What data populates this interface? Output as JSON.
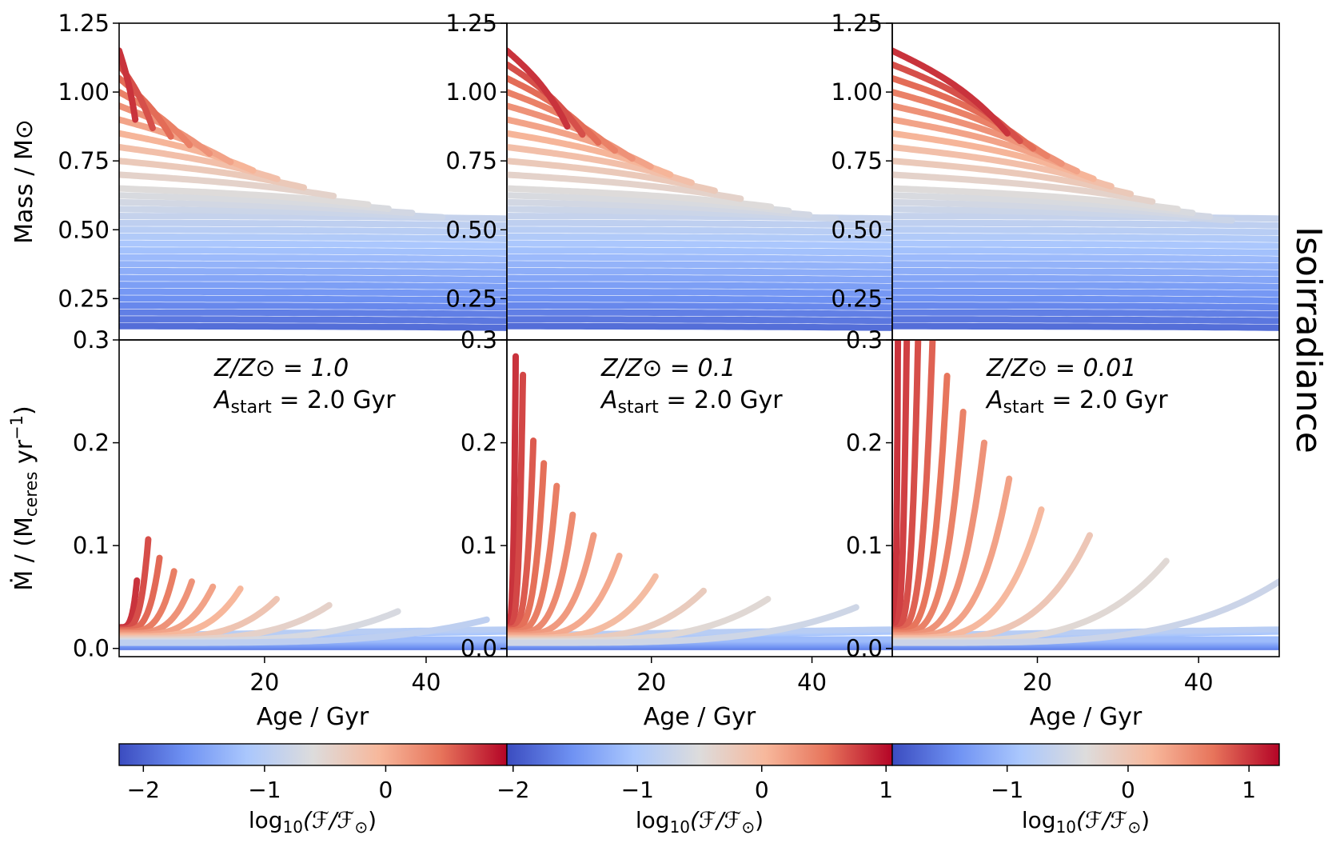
{
  "figure": {
    "side_label": "Isoirradiance",
    "x_label": "Age / Gyr",
    "mass_label": "Mass / M⊙",
    "mdot_label": "Ṁ / (M",
    "mdot_label_sub": "ceres",
    "mdot_label_tail": " yr",
    "mdot_label_sup": "−1",
    "mdot_label_close": ")",
    "cbar_label_main": "log",
    "cbar_label_sub": "10",
    "cbar_label_tail": "(ℱ/ℱ",
    "cbar_label_sun": "⊙",
    "cbar_label_close": ")"
  },
  "colormap": {
    "name": "coolwarm",
    "stops": [
      "#3b4cc0",
      "#6f92f3",
      "#aac7fd",
      "#dddcdc",
      "#f7b89c",
      "#e7745b",
      "#b40426"
    ]
  },
  "chart_data": [
    {
      "type": "line",
      "panel": "mass-col-1",
      "xlim": [
        2,
        50
      ],
      "ylim": [
        0.1,
        1.25
      ],
      "yticks": [
        "0.25",
        "0.50",
        "0.75",
        "1.00",
        "1.25"
      ],
      "ytick_values": [
        0.25,
        0.5,
        0.75,
        1.0,
        1.25
      ],
      "track_masses": [
        0.15,
        0.175,
        0.2,
        0.225,
        0.25,
        0.275,
        0.3,
        0.325,
        0.35,
        0.375,
        0.4,
        0.425,
        0.45,
        0.475,
        0.5,
        0.525,
        0.55,
        0.575,
        0.6,
        0.625,
        0.65,
        0.7,
        0.75,
        0.8,
        0.85,
        0.9,
        0.95,
        1.0,
        1.05,
        1.1,
        1.15
      ]
    },
    {
      "type": "line",
      "panel": "mass-col-2",
      "xlim": [
        2,
        50
      ],
      "ylim": [
        0.1,
        1.25
      ],
      "yticks": [
        "0.25",
        "0.50",
        "0.75",
        "1.00",
        "1.25"
      ],
      "ytick_values": [
        0.25,
        0.5,
        0.75,
        1.0,
        1.25
      ],
      "track_masses": [
        0.15,
        0.175,
        0.2,
        0.225,
        0.25,
        0.275,
        0.3,
        0.325,
        0.35,
        0.375,
        0.4,
        0.425,
        0.45,
        0.475,
        0.5,
        0.525,
        0.55,
        0.575,
        0.6,
        0.625,
        0.65,
        0.7,
        0.75,
        0.8,
        0.85,
        0.9,
        0.95,
        1.0,
        1.05,
        1.1,
        1.15
      ]
    },
    {
      "type": "line",
      "panel": "mass-col-3",
      "xlim": [
        2,
        50
      ],
      "ylim": [
        0.1,
        1.25
      ],
      "yticks": [
        "0.25",
        "0.50",
        "0.75",
        "1.00",
        "1.25"
      ],
      "ytick_values": [
        0.25,
        0.5,
        0.75,
        1.0,
        1.25
      ],
      "track_masses": [
        0.15,
        0.175,
        0.2,
        0.225,
        0.25,
        0.275,
        0.3,
        0.325,
        0.35,
        0.375,
        0.4,
        0.425,
        0.45,
        0.475,
        0.5,
        0.525,
        0.55,
        0.575,
        0.6,
        0.625,
        0.65,
        0.7,
        0.75,
        0.8,
        0.85,
        0.9,
        0.95,
        1.0,
        1.05,
        1.1,
        1.15
      ]
    },
    {
      "type": "line",
      "panel": "mdot-col-1",
      "xlim": [
        2,
        50
      ],
      "ylim": [
        -0.008,
        0.3
      ],
      "xticks": [
        "20",
        "40"
      ],
      "xtick_values": [
        20,
        40
      ],
      "yticks": [
        "0.0",
        "0.1",
        "0.2",
        "0.3"
      ],
      "ytick_values": [
        0.0,
        0.1,
        0.2,
        0.3
      ],
      "annotation_line1": "Z/Z⊙ = 1.0",
      "annotation_line2": "A",
      "annotation_line2_sub": "start",
      "annotation_line2_tail": " = 2.0 Gyr",
      "tracks": [
        {
          "end_age": 4.2,
          "peak": 0.066,
          "c": 0.93
        },
        {
          "end_age": 5.6,
          "peak": 0.106,
          "c": 0.89
        },
        {
          "end_age": 7.0,
          "peak": 0.088,
          "c": 0.85
        },
        {
          "end_age": 8.8,
          "peak": 0.075,
          "c": 0.81
        },
        {
          "end_age": 11.0,
          "peak": 0.065,
          "c": 0.76
        },
        {
          "end_age": 13.6,
          "peak": 0.06,
          "c": 0.72
        },
        {
          "end_age": 17.0,
          "peak": 0.058,
          "c": 0.67
        },
        {
          "end_age": 21.5,
          "peak": 0.048,
          "c": 0.61
        },
        {
          "end_age": 28.0,
          "peak": 0.042,
          "c": 0.55
        },
        {
          "end_age": 36.5,
          "peak": 0.036,
          "c": 0.48
        },
        {
          "end_age": 47.5,
          "peak": 0.028,
          "c": 0.4
        }
      ]
    },
    {
      "type": "line",
      "panel": "mdot-col-2",
      "xlim": [
        2,
        50
      ],
      "ylim": [
        -0.008,
        0.3
      ],
      "xticks": [
        "20",
        "40"
      ],
      "xtick_values": [
        20,
        40
      ],
      "yticks": [
        "0.0",
        "0.1",
        "0.2",
        "0.3"
      ],
      "ytick_values": [
        0.0,
        0.1,
        0.2,
        0.3
      ],
      "annotation_line1": "Z/Z⊙ = 0.1",
      "annotation_line2": "A",
      "annotation_line2_sub": "start",
      "annotation_line2_tail": " = 2.0 Gyr",
      "tracks": [
        {
          "end_age": 3.1,
          "peak": 0.284,
          "c": 0.93
        },
        {
          "end_age": 4.0,
          "peak": 0.266,
          "c": 0.9
        },
        {
          "end_age": 5.3,
          "peak": 0.202,
          "c": 0.87
        },
        {
          "end_age": 6.6,
          "peak": 0.18,
          "c": 0.84
        },
        {
          "end_age": 8.2,
          "peak": 0.158,
          "c": 0.81
        },
        {
          "end_age": 10.2,
          "peak": 0.13,
          "c": 0.78
        },
        {
          "end_age": 12.8,
          "peak": 0.11,
          "c": 0.74
        },
        {
          "end_age": 16.0,
          "peak": 0.09,
          "c": 0.7
        },
        {
          "end_age": 20.5,
          "peak": 0.07,
          "c": 0.65
        },
        {
          "end_age": 26.5,
          "peak": 0.056,
          "c": 0.58
        },
        {
          "end_age": 34.5,
          "peak": 0.048,
          "c": 0.52
        },
        {
          "end_age": 45.5,
          "peak": 0.04,
          "c": 0.45
        }
      ]
    },
    {
      "type": "line",
      "panel": "mdot-col-3",
      "xlim": [
        2,
        50
      ],
      "ylim": [
        -0.008,
        0.3
      ],
      "xticks": [
        "20",
        "40"
      ],
      "xtick_values": [
        20,
        40
      ],
      "yticks": [
        "0.0",
        "0.1",
        "0.2",
        "0.3"
      ],
      "ytick_values": [
        0.0,
        0.1,
        0.2,
        0.3
      ],
      "annotation_line1": "Z/Z⊙ = 0.01",
      "annotation_line2": "A",
      "annotation_line2_sub": "start",
      "annotation_line2_tail": " = 2.0 Gyr",
      "tracks": [
        {
          "end_age": 2.7,
          "peak": 0.3,
          "c": 0.93
        },
        {
          "end_age": 3.8,
          "peak": 0.3,
          "c": 0.91
        },
        {
          "end_age": 5.2,
          "peak": 0.3,
          "c": 0.89
        },
        {
          "end_age": 7.0,
          "peak": 0.3,
          "c": 0.86
        },
        {
          "end_age": 8.8,
          "peak": 0.265,
          "c": 0.83
        },
        {
          "end_age": 10.8,
          "peak": 0.23,
          "c": 0.8
        },
        {
          "end_age": 13.4,
          "peak": 0.2,
          "c": 0.76
        },
        {
          "end_age": 16.5,
          "peak": 0.165,
          "c": 0.72
        },
        {
          "end_age": 20.5,
          "peak": 0.135,
          "c": 0.66
        },
        {
          "end_age": 26.5,
          "peak": 0.11,
          "c": 0.6
        },
        {
          "end_age": 36.0,
          "peak": 0.085,
          "c": 0.52
        },
        {
          "end_age": 50.0,
          "peak": 0.065,
          "c": 0.44
        }
      ]
    },
    {
      "type": "heatmap",
      "panel": "colorbar-1",
      "cmap": "coolwarm",
      "range": [
        -2.2,
        1.0
      ],
      "ticks": [
        "−2",
        "−1",
        "0"
      ],
      "tick_values": [
        -2,
        -1,
        0
      ]
    },
    {
      "type": "heatmap",
      "panel": "colorbar-2",
      "cmap": "coolwarm",
      "range": [
        -2.05,
        1.05
      ],
      "ticks": [
        "−2",
        "−1",
        "0",
        "1"
      ],
      "tick_values": [
        -2,
        -1,
        0,
        1
      ]
    },
    {
      "type": "heatmap",
      "panel": "colorbar-3",
      "cmap": "coolwarm",
      "range": [
        -1.95,
        1.25
      ],
      "ticks": [
        "−1",
        "0",
        "1"
      ],
      "tick_values": [
        -1,
        0,
        1
      ]
    }
  ]
}
